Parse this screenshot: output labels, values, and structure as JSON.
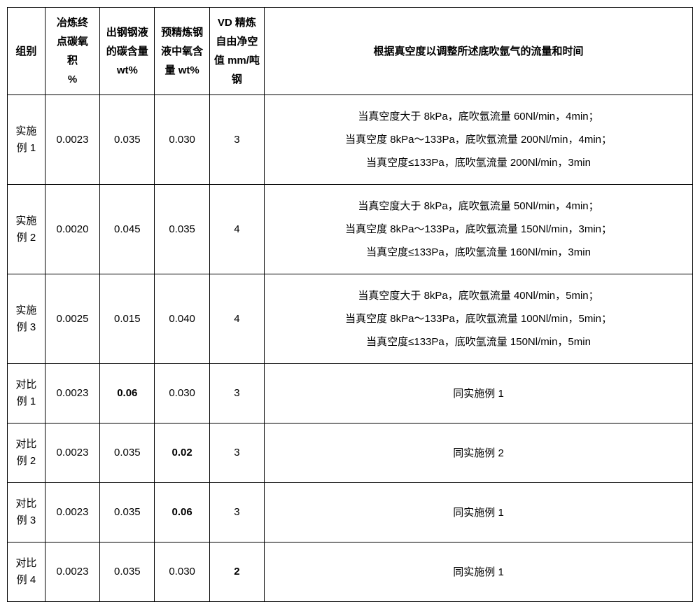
{
  "headers": {
    "group": "组别",
    "carbon_oxygen": "冶炼终点碳氧积 %",
    "steel_carbon": "出钢钢液的碳含量 wt%",
    "pre_oxygen": "预精炼钢液中氧含量 wt%",
    "vd_clearance": "VD 精炼自由净空值 mm/吨钢",
    "description": "根据真空度以调整所述底吹氩气的流量和时间"
  },
  "rows": [
    {
      "group": "实施例 1",
      "carbon_oxygen": "0.0023",
      "steel_carbon": "0.035",
      "pre_oxygen": "0.030",
      "vd_clearance": "3",
      "desc_line1": "当真空度大于 8kPa，底吹氩流量 60Nl/min，4min；",
      "desc_line2": "当真空度 8kPa～133Pa，底吹氩流量 200Nl/min，4min；",
      "desc_line3": "当真空度≤133Pa，底吹氩流量 200Nl/min，3min"
    },
    {
      "group": "实施例 2",
      "carbon_oxygen": "0.0020",
      "steel_carbon": "0.045",
      "pre_oxygen": "0.035",
      "vd_clearance": "4",
      "desc_line1": "当真空度大于 8kPa，底吹氩流量 50Nl/min，4min；",
      "desc_line2": "当真空度 8kPa～133Pa，底吹氩流量 150Nl/min，3min；",
      "desc_line3": "当真空度≤133Pa，底吹氩流量 160Nl/min，3min"
    },
    {
      "group": "实施例 3",
      "carbon_oxygen": "0.0025",
      "steel_carbon": "0.015",
      "pre_oxygen": "0.040",
      "vd_clearance": "4",
      "desc_line1": "当真空度大于 8kPa，底吹氩流量 40Nl/min，5min；",
      "desc_line2": "当真空度 8kPa～133Pa，底吹氩流量 100Nl/min，5min；",
      "desc_line3": "当真空度≤133Pa，底吹氩流量 150Nl/min，5min"
    },
    {
      "group": "对比例 1",
      "carbon_oxygen": "0.0023",
      "steel_carbon": "0.06",
      "steel_carbon_bold": true,
      "pre_oxygen": "0.030",
      "vd_clearance": "3",
      "desc_single": "同实施例 1"
    },
    {
      "group": "对比例 2",
      "carbon_oxygen": "0.0023",
      "steel_carbon": "0.035",
      "pre_oxygen": "0.02",
      "pre_oxygen_bold": true,
      "vd_clearance": "3",
      "desc_single": "同实施例 2"
    },
    {
      "group": "对比例 3",
      "carbon_oxygen": "0.0023",
      "steel_carbon": "0.035",
      "pre_oxygen": "0.06",
      "pre_oxygen_bold": true,
      "vd_clearance": "3",
      "desc_single": "同实施例 1"
    },
    {
      "group": "对比例 4",
      "carbon_oxygen": "0.0023",
      "steel_carbon": "0.035",
      "pre_oxygen": "0.030",
      "vd_clearance": "2",
      "vd_clearance_bold": true,
      "desc_single": "同实施例 1"
    }
  ]
}
